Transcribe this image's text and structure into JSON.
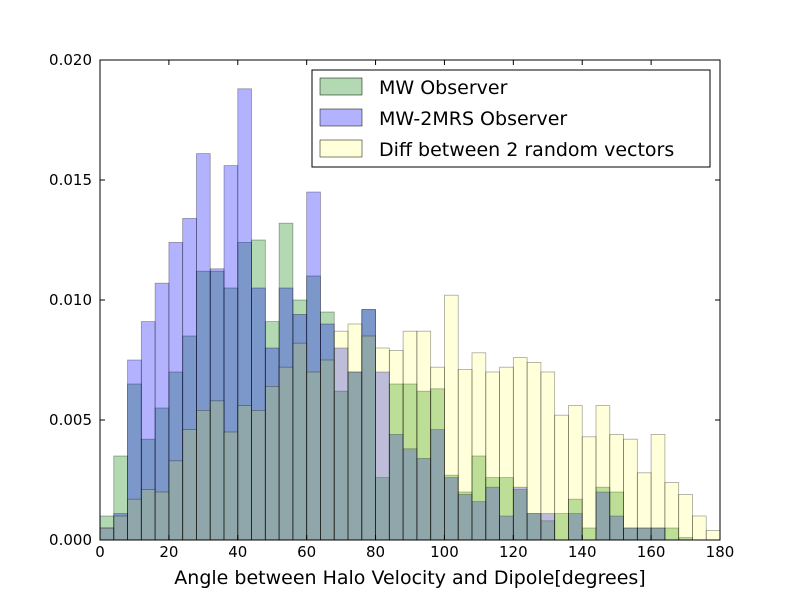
{
  "chart_data": {
    "type": "bar",
    "title": "",
    "xlabel": "Angle between Halo Velocity and Dipole[degrees]",
    "ylabel": "",
    "xlim": [
      0,
      180
    ],
    "ylim": [
      0,
      0.02
    ],
    "xticks": [
      0,
      20,
      40,
      60,
      80,
      100,
      120,
      140,
      160,
      180
    ],
    "xtick_labels": [
      "0",
      "20",
      "40",
      "60",
      "80",
      "100",
      "120",
      "140",
      "160",
      "180"
    ],
    "yticks": [
      0,
      0.005,
      0.01,
      0.015,
      0.02
    ],
    "ytick_labels": [
      "0.000",
      "0.005",
      "0.010",
      "0.015",
      "0.020"
    ],
    "grid": false,
    "legend_position": "top-right",
    "bin_width": 4,
    "bin_starts": [
      0,
      4,
      8,
      12,
      16,
      20,
      24,
      28,
      32,
      36,
      40,
      44,
      48,
      52,
      56,
      60,
      64,
      68,
      72,
      76,
      80,
      84,
      88,
      92,
      96,
      100,
      104,
      108,
      112,
      116,
      120,
      124,
      128,
      132,
      136,
      140,
      144,
      148,
      152,
      156,
      160,
      164,
      168,
      172,
      176
    ],
    "series": [
      {
        "name": "MW Observer",
        "color": "#008000",
        "opacity": 0.3,
        "values": [
          0.001,
          0.0035,
          0.0065,
          0.0042,
          0.0055,
          0.007,
          0.0085,
          0.0112,
          0.0112,
          0.0105,
          0.0124,
          0.0125,
          0.0091,
          0.0132,
          0.01,
          0.011,
          0.0095,
          0.0062,
          0.007,
          0.0096,
          0.0026,
          0.0065,
          0.0065,
          0.0062,
          0.0063,
          0.0027,
          0.002,
          0.0035,
          0.0026,
          0.0026,
          0.0021,
          0.0011,
          0.0008,
          0.0011,
          0.0017,
          0.0005,
          0.0022,
          0.002,
          0.0005,
          0.0005,
          0.0005,
          0.0005,
          0.0001,
          0.0,
          0.0
        ]
      },
      {
        "name": "MW-2MRS Observer",
        "color": "#0000ff",
        "opacity": 0.3,
        "values": [
          0.0005,
          0.0011,
          0.0075,
          0.0091,
          0.0107,
          0.0124,
          0.0134,
          0.0161,
          0.0113,
          0.0156,
          0.0188,
          0.0105,
          0.008,
          0.0105,
          0.0094,
          0.0145,
          0.009,
          0.008,
          0.007,
          0.0096,
          0.007,
          0.0044,
          0.0038,
          0.0034,
          0.0046,
          0.0026,
          0.0019,
          0.0016,
          0.0022,
          0.001,
          0.0022,
          0.0011,
          0.0011,
          0.0,
          0.0011,
          0.0,
          0.002,
          0.001,
          0.0005,
          0.0005,
          0.0005,
          0.0,
          0.0,
          0.0,
          0.0
        ]
      },
      {
        "name": "Diff between 2 random vectors",
        "color": "#ffff00",
        "opacity": 0.15,
        "values": [
          0.0005,
          0.001,
          0.0017,
          0.0021,
          0.002,
          0.0033,
          0.0046,
          0.0054,
          0.0058,
          0.0045,
          0.0056,
          0.0054,
          0.0064,
          0.0072,
          0.0082,
          0.007,
          0.0075,
          0.0087,
          0.009,
          0.0085,
          0.008,
          0.0079,
          0.0087,
          0.0087,
          0.0072,
          0.0102,
          0.0071,
          0.0078,
          0.007,
          0.0072,
          0.0076,
          0.0074,
          0.007,
          0.0052,
          0.0056,
          0.0043,
          0.0056,
          0.0044,
          0.0042,
          0.0028,
          0.0044,
          0.0024,
          0.0019,
          0.001,
          0.0004
        ]
      }
    ]
  }
}
